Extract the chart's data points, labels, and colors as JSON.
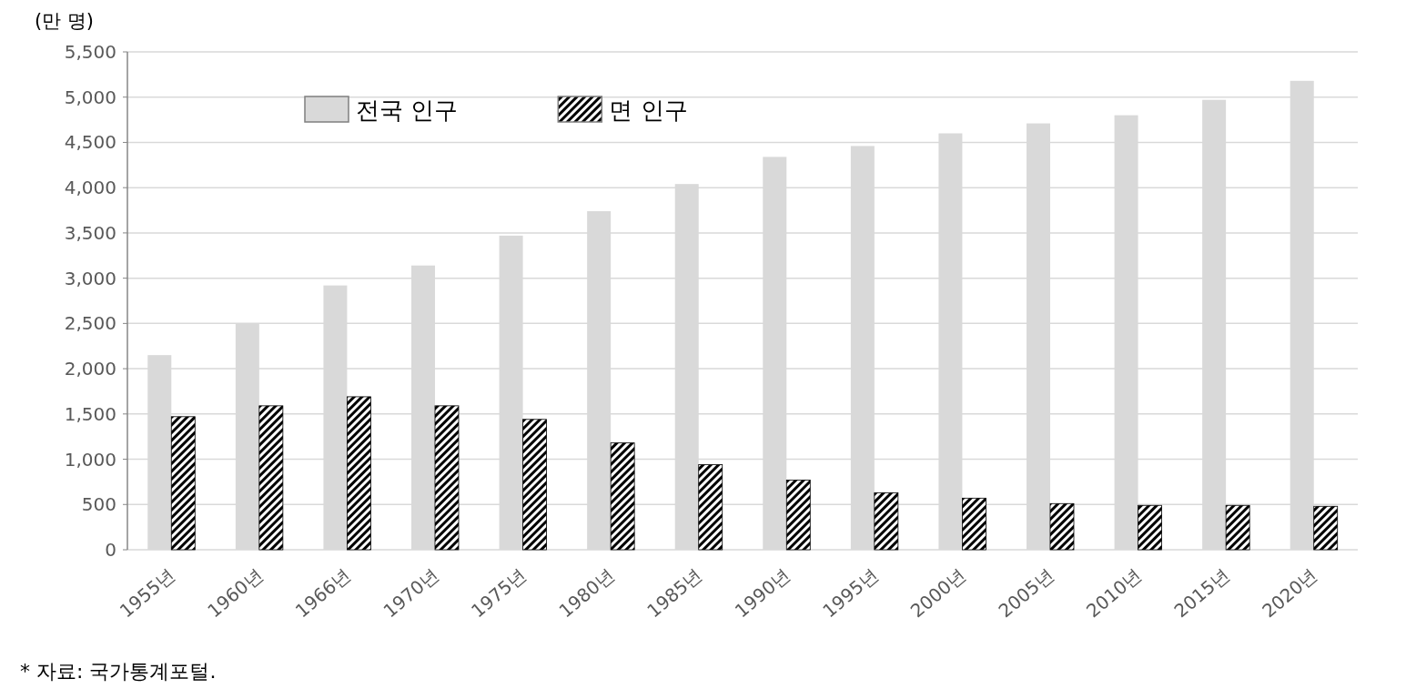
{
  "chart_data": {
    "type": "bar",
    "ylabel": "(만 명)",
    "categories": [
      "1955년",
      "1960년",
      "1966년",
      "1970년",
      "1975년",
      "1980년",
      "1985년",
      "1990년",
      "1995년",
      "2000년",
      "2005년",
      "2010년",
      "2015년",
      "2020년"
    ],
    "series": [
      {
        "name": "전국 인구",
        "color": "#d9d9d9",
        "values": [
          2150,
          2500,
          2920,
          3140,
          3470,
          3740,
          4040,
          4340,
          4460,
          4600,
          4710,
          4800,
          4970,
          5180
        ]
      },
      {
        "name": "면 인구",
        "color": "#000000",
        "values": [
          1470,
          1590,
          1690,
          1590,
          1440,
          1180,
          940,
          770,
          630,
          570,
          510,
          490,
          490,
          480
        ]
      }
    ],
    "ylim": [
      0,
      5500
    ],
    "yticks": [
      {
        "value": 0,
        "label": "0"
      },
      {
        "value": 500,
        "label": "500"
      },
      {
        "value": 1000,
        "label": "1,000"
      },
      {
        "value": 1500,
        "label": "1,500"
      },
      {
        "value": 2000,
        "label": "2,000"
      },
      {
        "value": 2500,
        "label": "2,500"
      },
      {
        "value": 3000,
        "label": "3,000"
      },
      {
        "value": 3500,
        "label": "3,500"
      },
      {
        "value": 4000,
        "label": "4,000"
      },
      {
        "value": 4500,
        "label": "4,500"
      },
      {
        "value": 5000,
        "label": "5,000"
      },
      {
        "value": 5500,
        "label": "5,500"
      }
    ],
    "grid": "y",
    "legend": "top",
    "annotations": [
      "* 자료: 국가통계포털."
    ]
  }
}
